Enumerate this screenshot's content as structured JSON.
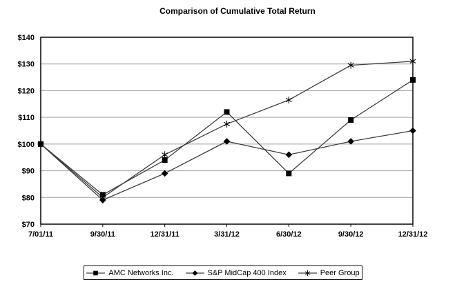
{
  "page": {
    "background": "#ffffff"
  },
  "chart_data": {
    "type": "line",
    "title": "Comparison of Cumulative Total Return",
    "categories": [
      "7/01/11",
      "9/30/11",
      "12/31/11",
      "3/31/12",
      "6/30/12",
      "9/30/12",
      "12/31/12"
    ],
    "series": [
      {
        "name": "AMC Networks Inc.",
        "marker": "square",
        "values": [
          100,
          81,
          94,
          112,
          89,
          109,
          124
        ]
      },
      {
        "name": "S&P MidCap 400 Index",
        "marker": "diamond",
        "values": [
          100,
          79,
          89,
          101,
          96,
          101,
          105
        ]
      },
      {
        "name": "Peer Group",
        "marker": "asterisk",
        "values": [
          100,
          80,
          96,
          107.5,
          116.5,
          129.5,
          131
        ]
      }
    ],
    "xlabel": "",
    "ylabel": "",
    "ylim": [
      70,
      140
    ],
    "ytick_step": 10,
    "ytick_prefix": "$",
    "grid": "horizontal",
    "legend_position": "bottom",
    "colors": {
      "line": "#3d3d3d",
      "marker": "#000000",
      "grid": "#a0a0a0",
      "axis": "#000000",
      "text": "#000000",
      "background": "#ffffff"
    }
  }
}
